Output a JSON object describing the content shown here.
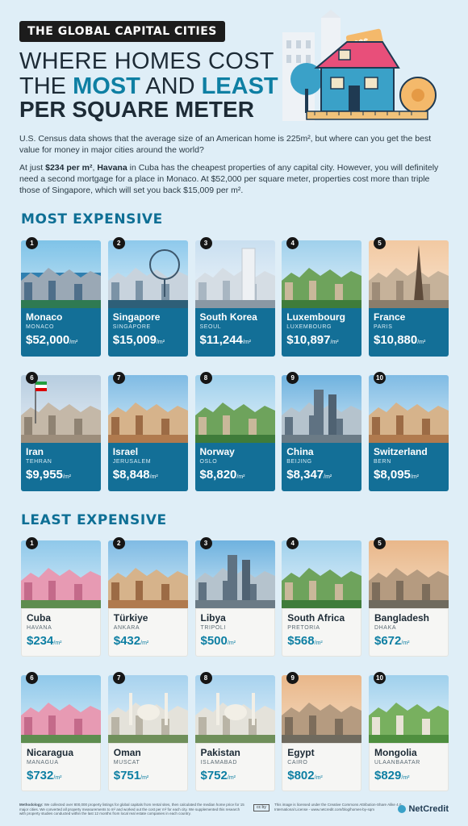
{
  "header": {
    "tag": "THE GLOBAL CAPITAL CITIES",
    "title_line1": "WHERE HOMES COST",
    "title_line2_pre": "THE ",
    "title_line2_most": "MOST",
    "title_line2_mid": " AND ",
    "title_line2_least": "LEAST",
    "title_line3": "PER SQUARE METER",
    "price_tag": "$$$"
  },
  "intro": {
    "p1": "U.S. Census data shows that the average size of an American home is 225m², but where can you get the best value for money in major cities around the world?",
    "p2_pre": "At just ",
    "p2_price": "$234 per m²",
    "p2_mid": ", ",
    "p2_city": "Havana",
    "p2_post": " in Cuba has the cheapest properties of any capital city. However, you will definitely need a second mortgage for a place in Monaco. At $52,000 per square meter, properties cost more than triple those of Singapore, which will set you back $15,009 per m²."
  },
  "sections": {
    "most": "MOST EXPENSIVE",
    "least": "LEAST EXPENSIVE"
  },
  "unit": "/m²",
  "most_expensive": [
    {
      "rank": "1",
      "country": "Monaco",
      "city": "MONACO",
      "price": "$52,000",
      "scene": "coast"
    },
    {
      "rank": "2",
      "country": "Singapore",
      "city": "SINGAPORE",
      "price": "$15,009",
      "scene": "wheel"
    },
    {
      "rank": "3",
      "country": "South Korea",
      "city": "SEOUL",
      "price": "$11,244",
      "scene": "statue"
    },
    {
      "rank": "4",
      "country": "Luxembourg",
      "city": "LUXEMBOURG",
      "price": "$10,897",
      "scene": "green"
    },
    {
      "rank": "5",
      "country": "France",
      "city": "PARIS",
      "price": "$10,880",
      "scene": "eiffel"
    },
    {
      "rank": "6",
      "country": "Iran",
      "city": "TEHRAN",
      "price": "$9,955",
      "scene": "flag"
    },
    {
      "rank": "7",
      "country": "Israel",
      "city": "JERUSALEM",
      "price": "$8,848",
      "scene": "old"
    },
    {
      "rank": "8",
      "country": "Norway",
      "city": "OSLO",
      "price": "$8,820",
      "scene": "green"
    },
    {
      "rank": "9",
      "country": "China",
      "city": "BEIJING",
      "price": "$8,347",
      "scene": "towers"
    },
    {
      "rank": "10",
      "country": "Switzerland",
      "city": "BERN",
      "price": "$8,095",
      "scene": "old"
    }
  ],
  "least_expensive": [
    {
      "rank": "1",
      "country": "Cuba",
      "city": "HAVANA",
      "price": "$234",
      "scene": "pink"
    },
    {
      "rank": "2",
      "country": "Türkiye",
      "city": "ANKARA",
      "price": "$432",
      "scene": "old"
    },
    {
      "rank": "3",
      "country": "Libya",
      "city": "TRIPOLI",
      "price": "$500",
      "scene": "towers"
    },
    {
      "rank": "4",
      "country": "South Africa",
      "city": "PRETORIA",
      "price": "$568",
      "scene": "green"
    },
    {
      "rank": "5",
      "country": "Bangladesh",
      "city": "DHAKA",
      "price": "$672",
      "scene": "dusk"
    },
    {
      "rank": "6",
      "country": "Nicaragua",
      "city": "MANAGUA",
      "price": "$732",
      "scene": "pink"
    },
    {
      "rank": "7",
      "country": "Oman",
      "city": "MUSCAT",
      "price": "$751",
      "scene": "mosque"
    },
    {
      "rank": "8",
      "country": "Pakistan",
      "city": "ISLAMABAD",
      "price": "$752",
      "scene": "mosque"
    },
    {
      "rank": "9",
      "country": "Egypt",
      "city": "CAIRO",
      "price": "$802",
      "scene": "dusk"
    },
    {
      "rank": "10",
      "country": "Mongolia",
      "city": "ULAANBAATAR",
      "price": "$829",
      "scene": "hills"
    }
  ],
  "footer": {
    "method_label": "Methodology:",
    "method_text": " We collected over 800,000 property listings for global capitals from rental sites, then calculated the median home price for 15 major cities. We converted all property measurements to m² and worked out the cost per m² for each city. We supplemented this research with property studies conducted within the last 12 months from local real estate companies in each country.",
    "cc": "cc by",
    "license": "This image is licensed under the Creative Commons Attribution-Share Alike 4.0 International License - www.netcredit.com/blog/homes-by-sqm",
    "brand": "NetCredit"
  },
  "colors": {
    "accent": "#0e7fa3",
    "card_blue": "#136f97",
    "background": "#dfeef7"
  }
}
